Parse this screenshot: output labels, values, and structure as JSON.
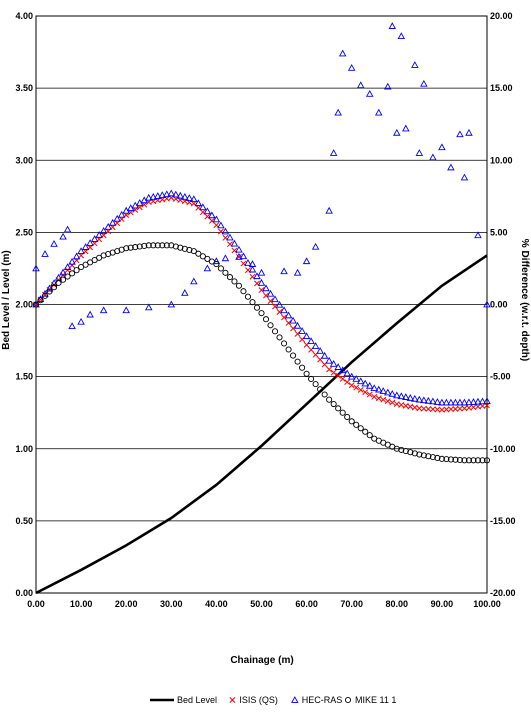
{
  "chart_data": {
    "type": "scatter",
    "xlabel": "Chainage (m)",
    "ylabel": "Bed Level / Level (m)",
    "y2label": "% Difference (w.r.t. depth)",
    "xlim": [
      0,
      100
    ],
    "ylim": [
      0,
      4
    ],
    "y2lim": [
      -20,
      20
    ],
    "x_ticks": [
      "0.00",
      "10.00",
      "20.00",
      "30.00",
      "40.00",
      "50.00",
      "60.00",
      "70.00",
      "80.00",
      "90.00",
      "100.00"
    ],
    "y_ticks": [
      "0.00",
      "0.50",
      "1.00",
      "1.50",
      "2.00",
      "2.50",
      "3.00",
      "3.50",
      "4.00"
    ],
    "y2_ticks": [
      "-20.00",
      "-15.00",
      "-10.00",
      "-5.00",
      "0.00",
      "5.00",
      "10.00",
      "15.00",
      "20.00"
    ],
    "grid": "horizontal",
    "legend_position": "bottom",
    "series": [
      {
        "name": "Bed Level",
        "marker": "line",
        "color": "#000000",
        "axis": "left",
        "x": [
          0,
          10,
          20,
          30,
          40,
          50,
          60,
          70,
          80,
          90,
          100
        ],
        "y": [
          0.0,
          0.16,
          0.33,
          0.52,
          0.75,
          1.02,
          1.31,
          1.6,
          1.87,
          2.13,
          2.34
        ]
      },
      {
        "name": "ISIS (QS)",
        "marker": "x",
        "color": "#ff0000",
        "axis": "left",
        "x": [
          0,
          10,
          20,
          25,
          30,
          35,
          40,
          45,
          50,
          55,
          60,
          65,
          70,
          75,
          80,
          85,
          90,
          95,
          100
        ],
        "y": [
          2.0,
          2.34,
          2.62,
          2.71,
          2.74,
          2.7,
          2.55,
          2.33,
          2.1,
          1.91,
          1.72,
          1.55,
          1.44,
          1.36,
          1.31,
          1.28,
          1.27,
          1.28,
          1.3
        ]
      },
      {
        "name": "HEC-RAS",
        "marker": "triangle",
        "color": "#0000ff",
        "axis": "left",
        "x": [
          0,
          10,
          20,
          25,
          30,
          35,
          40,
          45,
          50,
          55,
          60,
          65,
          70,
          75,
          80,
          85,
          90,
          95,
          100
        ],
        "y": [
          2.0,
          2.37,
          2.65,
          2.74,
          2.77,
          2.73,
          2.59,
          2.38,
          2.15,
          1.96,
          1.78,
          1.61,
          1.5,
          1.42,
          1.37,
          1.34,
          1.32,
          1.32,
          1.33
        ]
      },
      {
        "name": "MIKE 11 1",
        "marker": "circle",
        "color": "#000000",
        "axis": "left",
        "x": [
          0,
          5,
          10,
          15,
          20,
          25,
          30,
          35,
          40,
          45,
          50,
          55,
          60,
          65,
          70,
          75,
          80,
          85,
          90,
          95,
          100
        ],
        "y": [
          2.0,
          2.15,
          2.26,
          2.34,
          2.39,
          2.41,
          2.41,
          2.37,
          2.28,
          2.13,
          1.94,
          1.73,
          1.52,
          1.34,
          1.19,
          1.07,
          1.0,
          0.96,
          0.93,
          0.92,
          0.92
        ]
      },
      {
        "name": "",
        "marker": "triangle",
        "color": "#0000ff",
        "axis": "right",
        "x": [
          0,
          2,
          4,
          6,
          7,
          8,
          10,
          12,
          15,
          20,
          25,
          30,
          33,
          35,
          38,
          40,
          42,
          45,
          48,
          50,
          55,
          58,
          60,
          62,
          65,
          66,
          67,
          68,
          70,
          72,
          74,
          76,
          78,
          79,
          80,
          81,
          82,
          84,
          85,
          86,
          88,
          90,
          92,
          94,
          95,
          96,
          98,
          100
        ],
        "y": [
          2.5,
          3.5,
          4.2,
          4.7,
          5.2,
          -1.5,
          -1.2,
          -0.7,
          -0.4,
          -0.4,
          -0.2,
          0.0,
          0.8,
          1.6,
          2.5,
          3.0,
          3.2,
          3.3,
          2.8,
          2.2,
          2.3,
          2.2,
          3.0,
          4.0,
          6.5,
          10.5,
          13.3,
          17.4,
          16.4,
          15.2,
          14.6,
          13.3,
          15.1,
          19.3,
          11.9,
          18.6,
          12.2,
          16.6,
          10.5,
          15.3,
          10.2,
          10.9,
          9.5,
          11.8,
          8.8,
          11.9,
          4.8,
          0.0
        ]
      }
    ]
  }
}
